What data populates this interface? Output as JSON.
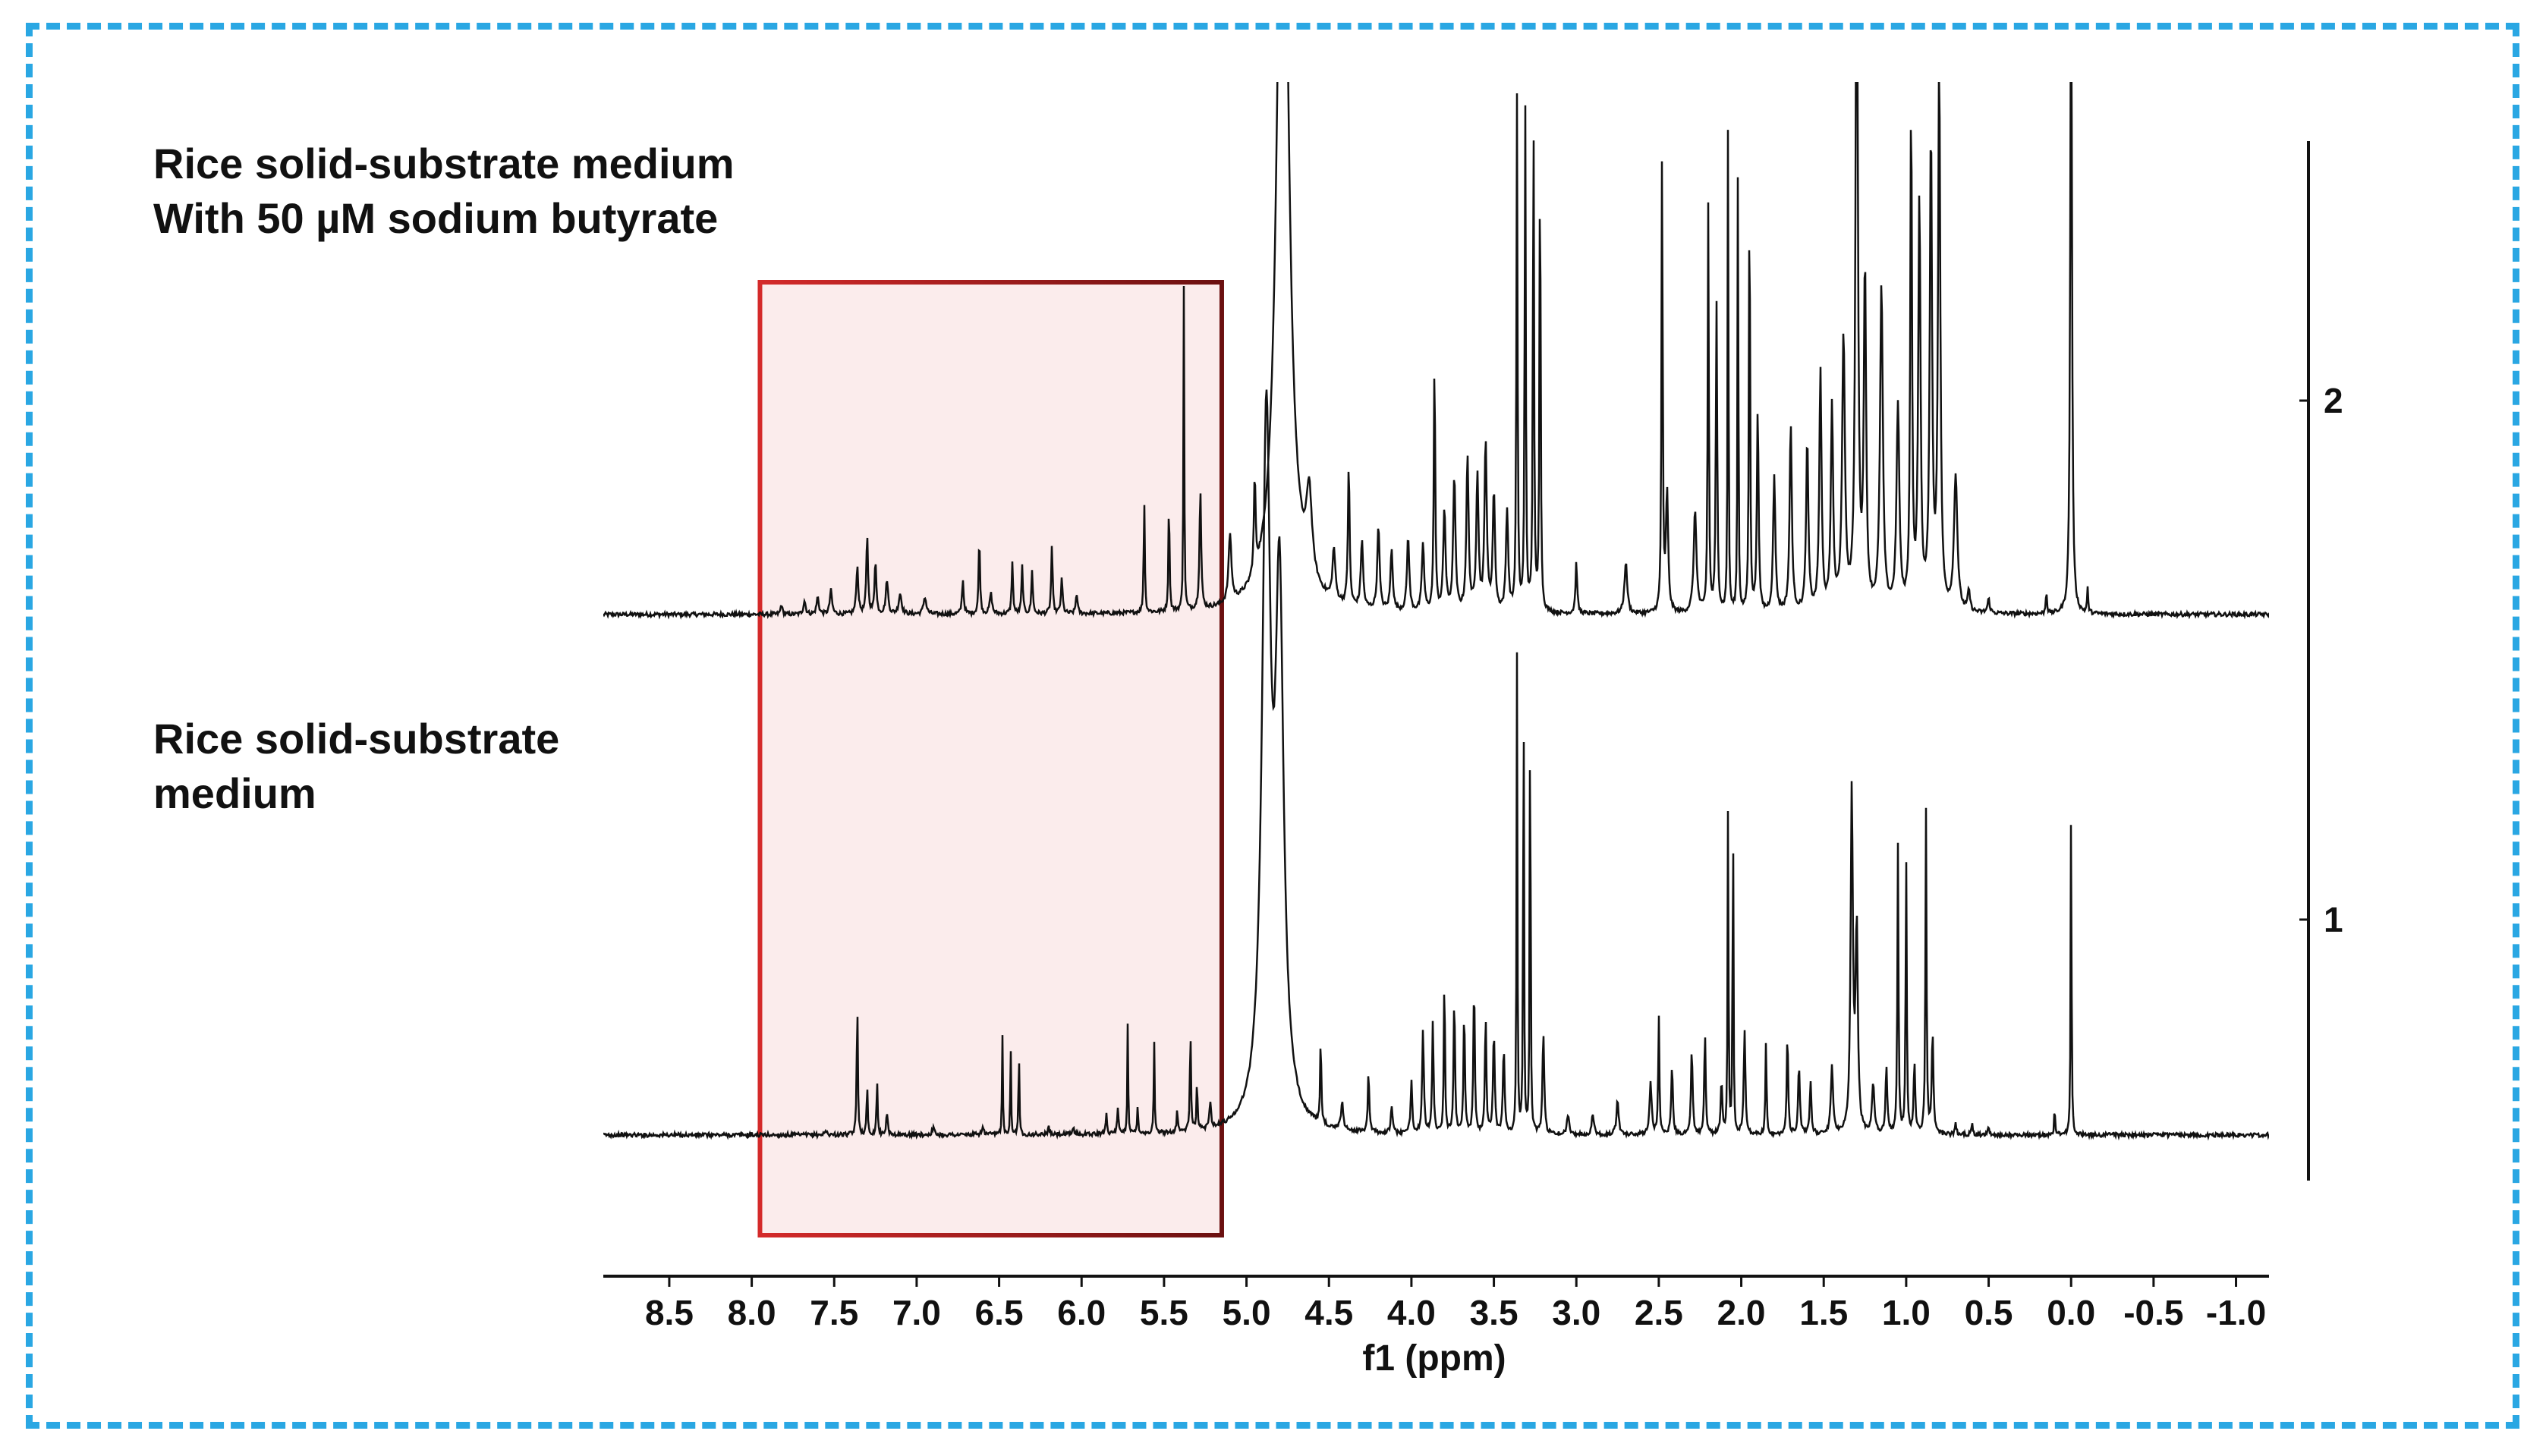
{
  "chart_data": {
    "type": "line",
    "title": "",
    "xlabel": "f1 (ppm)",
    "ylabel": "",
    "x_reversed": true,
    "xlim": [
      8.9,
      -1.2
    ],
    "x_ticks": [
      8.5,
      8.0,
      7.5,
      7.0,
      6.5,
      6.0,
      5.5,
      5.0,
      4.5,
      4.0,
      3.5,
      3.0,
      2.5,
      2.0,
      1.5,
      1.0,
      0.5,
      0.0,
      -0.5,
      -1.0
    ],
    "x_tick_labels": [
      "8.5",
      "8.0",
      "7.5",
      "7.0",
      "6.5",
      "6.0",
      "5.5",
      "5.0",
      "4.5",
      "4.0",
      "3.5",
      "3.0",
      "2.5",
      "2.0",
      "1.5",
      "1.0",
      "0.5",
      "0.0",
      "-0.5",
      "-1.0"
    ],
    "stack_ticks": [
      "2",
      "1"
    ],
    "highlight_region": {
      "x_from": 7.95,
      "x_to": 5.15,
      "fill": "#fbecec",
      "stroke_from": "#d42a2a",
      "stroke_to": "#6b1010"
    },
    "series": [
      {
        "label_lines": [
          "Rice solid-substrate medium",
          "With 50 µM sodium butyrate"
        ],
        "stack_index": 2,
        "peaks": [
          [
            7.82,
            0.03,
            0.006
          ],
          [
            7.68,
            0.04,
            0.008
          ],
          [
            7.6,
            0.05,
            0.008
          ],
          [
            7.52,
            0.07,
            0.008
          ],
          [
            7.36,
            0.14,
            0.007
          ],
          [
            7.3,
            0.23,
            0.006
          ],
          [
            7.25,
            0.16,
            0.006
          ],
          [
            7.18,
            0.1,
            0.008
          ],
          [
            7.1,
            0.06,
            0.01
          ],
          [
            6.95,
            0.05,
            0.01
          ],
          [
            6.72,
            0.1,
            0.006
          ],
          [
            6.62,
            0.22,
            0.005
          ],
          [
            6.55,
            0.06,
            0.008
          ],
          [
            6.42,
            0.15,
            0.005
          ],
          [
            6.36,
            0.14,
            0.005
          ],
          [
            6.3,
            0.13,
            0.005
          ],
          [
            6.18,
            0.2,
            0.005
          ],
          [
            6.12,
            0.1,
            0.006
          ],
          [
            6.03,
            0.06,
            0.006
          ],
          [
            5.62,
            0.33,
            0.004
          ],
          [
            5.47,
            0.33,
            0.004
          ],
          [
            5.38,
            0.95,
            0.003
          ],
          [
            5.28,
            0.35,
            0.006
          ],
          [
            5.1,
            0.2,
            0.01
          ],
          [
            4.95,
            0.28,
            0.006
          ],
          [
            4.78,
            2.6,
            0.04
          ],
          [
            4.62,
            0.25,
            0.02
          ],
          [
            4.47,
            0.15,
            0.01
          ],
          [
            4.38,
            0.41,
            0.006
          ],
          [
            4.3,
            0.2,
            0.008
          ],
          [
            4.2,
            0.25,
            0.008
          ],
          [
            4.12,
            0.18,
            0.008
          ],
          [
            4.02,
            0.22,
            0.008
          ],
          [
            3.93,
            0.2,
            0.008
          ],
          [
            3.86,
            0.74,
            0.005
          ],
          [
            3.8,
            0.3,
            0.008
          ],
          [
            3.74,
            0.4,
            0.008
          ],
          [
            3.66,
            0.45,
            0.008
          ],
          [
            3.6,
            0.4,
            0.008
          ],
          [
            3.55,
            0.5,
            0.008
          ],
          [
            3.5,
            0.35,
            0.008
          ],
          [
            3.42,
            0.3,
            0.008
          ],
          [
            3.36,
            1.5,
            0.004
          ],
          [
            3.31,
            1.5,
            0.004
          ],
          [
            3.26,
            1.5,
            0.004
          ],
          [
            3.22,
            1.4,
            0.004
          ],
          [
            3.0,
            0.15,
            0.006
          ],
          [
            2.7,
            0.15,
            0.01
          ],
          [
            2.48,
            1.4,
            0.004
          ],
          [
            2.45,
            0.35,
            0.008
          ],
          [
            2.28,
            0.3,
            0.01
          ],
          [
            2.2,
            1.2,
            0.004
          ],
          [
            2.15,
            0.9,
            0.005
          ],
          [
            2.08,
            1.5,
            0.003
          ],
          [
            2.02,
            1.4,
            0.003
          ],
          [
            1.95,
            1.3,
            0.004
          ],
          [
            1.9,
            0.6,
            0.006
          ],
          [
            1.8,
            0.4,
            0.008
          ],
          [
            1.7,
            0.55,
            0.008
          ],
          [
            1.6,
            0.5,
            0.008
          ],
          [
            1.52,
            0.7,
            0.008
          ],
          [
            1.45,
            0.6,
            0.008
          ],
          [
            1.38,
            0.8,
            0.01
          ],
          [
            1.3,
            2.2,
            0.008
          ],
          [
            1.25,
            1.0,
            0.008
          ],
          [
            1.15,
            0.95,
            0.01
          ],
          [
            1.05,
            0.6,
            0.01
          ],
          [
            0.97,
            1.5,
            0.006
          ],
          [
            0.92,
            1.2,
            0.008
          ],
          [
            0.85,
            1.4,
            0.008
          ],
          [
            0.8,
            1.6,
            0.008
          ],
          [
            0.7,
            0.4,
            0.012
          ],
          [
            0.62,
            0.06,
            0.008
          ],
          [
            0.5,
            0.04,
            0.008
          ],
          [
            0.15,
            0.07,
            0.004
          ],
          [
            0.0,
            2.0,
            0.006
          ],
          [
            -0.1,
            0.07,
            0.004
          ]
        ]
      },
      {
        "label_lines": [
          "Rice solid-substrate",
          "medium"
        ],
        "stack_index": 1,
        "peaks": [
          [
            7.55,
            0.01,
            0.01
          ],
          [
            7.36,
            0.39,
            0.004
          ],
          [
            7.3,
            0.14,
            0.004
          ],
          [
            7.24,
            0.16,
            0.004
          ],
          [
            7.18,
            0.06,
            0.006
          ],
          [
            6.9,
            0.02,
            0.008
          ],
          [
            6.6,
            0.02,
            0.008
          ],
          [
            6.48,
            0.29,
            0.003
          ],
          [
            6.43,
            0.26,
            0.003
          ],
          [
            6.38,
            0.26,
            0.003
          ],
          [
            6.2,
            0.02,
            0.006
          ],
          [
            6.05,
            0.02,
            0.006
          ],
          [
            5.85,
            0.06,
            0.005
          ],
          [
            5.78,
            0.07,
            0.005
          ],
          [
            5.72,
            0.33,
            0.003
          ],
          [
            5.66,
            0.08,
            0.004
          ],
          [
            5.56,
            0.28,
            0.003
          ],
          [
            5.42,
            0.07,
            0.004
          ],
          [
            5.34,
            0.29,
            0.004
          ],
          [
            5.3,
            0.14,
            0.004
          ],
          [
            5.22,
            0.08,
            0.006
          ],
          [
            4.88,
            2.0,
            0.03
          ],
          [
            4.8,
            1.5,
            0.03
          ],
          [
            4.55,
            0.25,
            0.004
          ],
          [
            4.42,
            0.08,
            0.008
          ],
          [
            4.26,
            0.18,
            0.005
          ],
          [
            4.12,
            0.08,
            0.006
          ],
          [
            4.0,
            0.15,
            0.006
          ],
          [
            3.93,
            0.3,
            0.006
          ],
          [
            3.87,
            0.33,
            0.005
          ],
          [
            3.8,
            0.48,
            0.004
          ],
          [
            3.74,
            0.4,
            0.005
          ],
          [
            3.68,
            0.36,
            0.005
          ],
          [
            3.62,
            0.45,
            0.005
          ],
          [
            3.55,
            0.35,
            0.005
          ],
          [
            3.5,
            0.3,
            0.006
          ],
          [
            3.44,
            0.25,
            0.006
          ],
          [
            3.36,
            1.4,
            0.003
          ],
          [
            3.32,
            1.4,
            0.003
          ],
          [
            3.28,
            1.4,
            0.003
          ],
          [
            3.2,
            0.3,
            0.006
          ],
          [
            3.05,
            0.06,
            0.008
          ],
          [
            2.9,
            0.06,
            0.008
          ],
          [
            2.75,
            0.1,
            0.008
          ],
          [
            2.55,
            0.15,
            0.008
          ],
          [
            2.5,
            0.35,
            0.004
          ],
          [
            2.42,
            0.2,
            0.006
          ],
          [
            2.3,
            0.25,
            0.006
          ],
          [
            2.22,
            0.3,
            0.005
          ],
          [
            2.12,
            0.15,
            0.006
          ],
          [
            2.08,
            1.0,
            0.003
          ],
          [
            2.05,
            1.0,
            0.003
          ],
          [
            1.98,
            0.3,
            0.006
          ],
          [
            1.85,
            0.28,
            0.004
          ],
          [
            1.72,
            0.3,
            0.005
          ],
          [
            1.65,
            0.2,
            0.006
          ],
          [
            1.58,
            0.15,
            0.006
          ],
          [
            1.45,
            0.2,
            0.008
          ],
          [
            1.33,
            1.0,
            0.008
          ],
          [
            1.3,
            0.6,
            0.008
          ],
          [
            1.2,
            0.15,
            0.008
          ],
          [
            1.12,
            0.2,
            0.006
          ],
          [
            1.05,
            0.85,
            0.004
          ],
          [
            1.0,
            0.8,
            0.004
          ],
          [
            0.95,
            0.2,
            0.006
          ],
          [
            0.88,
            0.95,
            0.004
          ],
          [
            0.84,
            0.3,
            0.006
          ],
          [
            0.7,
            0.03,
            0.006
          ],
          [
            0.6,
            0.03,
            0.006
          ],
          [
            0.5,
            0.02,
            0.006
          ],
          [
            0.1,
            0.1,
            0.003
          ],
          [
            0.0,
            1.0,
            0.003
          ]
        ]
      }
    ]
  }
}
